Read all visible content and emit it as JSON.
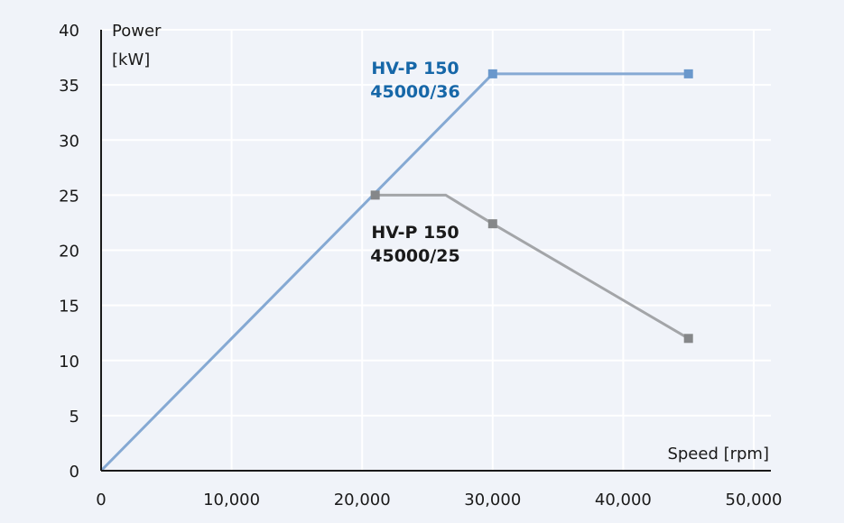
{
  "chart_data": {
    "type": "line",
    "title": "",
    "xlabel": "Speed [rpm]",
    "ylabel_line1": "Power",
    "ylabel_line2": "[kW]",
    "xlim": [
      0,
      50000
    ],
    "ylim": [
      0,
      40
    ],
    "xticks": [
      0,
      10000,
      20000,
      30000,
      40000,
      50000
    ],
    "xtick_labels": [
      "0",
      "10,000",
      "20,000",
      "30,000",
      "40,000",
      "50,000"
    ],
    "yticks": [
      0,
      5,
      10,
      15,
      20,
      25,
      30,
      35,
      40
    ],
    "ytick_labels": [
      "0",
      "5",
      "10",
      "15",
      "20",
      "25",
      "30",
      "35",
      "40"
    ],
    "grid": true,
    "series": [
      {
        "label_line1": "HV-P 150",
        "label_line2": "45000/36",
        "color": "#85a9d3",
        "label_color": "#1667a8",
        "marker_color": "#6a98cc",
        "x": [
          0,
          30000,
          45000
        ],
        "y": [
          0,
          36,
          36
        ],
        "markers": [
          false,
          true,
          true
        ]
      },
      {
        "label_line1": "HV-P 150",
        "label_line2": "45000/25",
        "color": "#a3a5a8",
        "label_color": "#1a1a1a",
        "marker_color": "#858789",
        "x": [
          21000,
          26400,
          30000,
          45000
        ],
        "y": [
          25,
          25,
          22.4,
          12
        ],
        "markers": [
          true,
          false,
          true,
          true
        ]
      }
    ]
  }
}
